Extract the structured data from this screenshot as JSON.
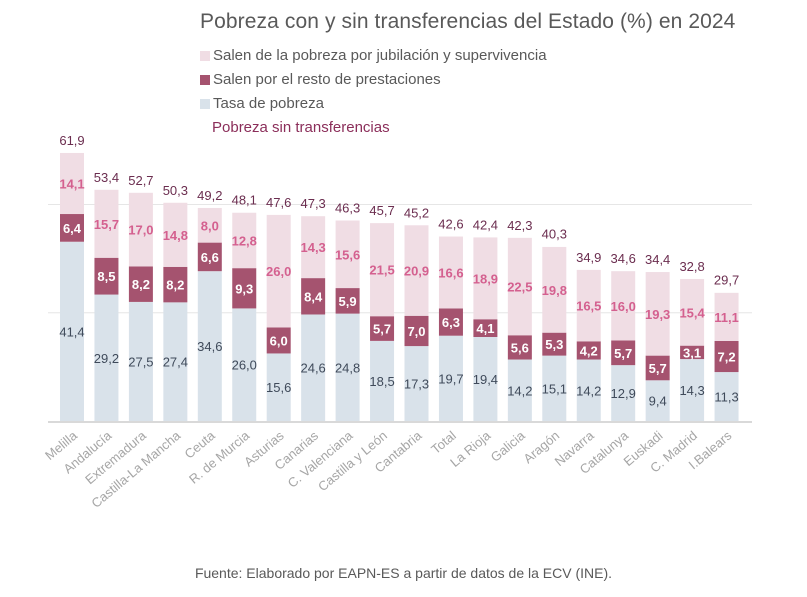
{
  "chart_data": {
    "type": "bar",
    "stacked": true,
    "title": "Pobreza con y sin transferencias del Estado (%) en 2024",
    "xlabel": "",
    "ylabel": "",
    "ylim": [
      0,
      65
    ],
    "gridlines": [
      25,
      50
    ],
    "grid": true,
    "legend_position": "top-left",
    "categories": [
      "Melilla",
      "Andalucía",
      "Extremadura",
      "Castilla-La Mancha",
      "Ceuta",
      "R. de Murcia",
      "Asturias",
      "Canarias",
      "C. Valenciana",
      "Castilla y León",
      "Cantabria",
      "Total",
      "La Rioja",
      "Galicia",
      "Aragón",
      "Navarra",
      "Catalunya",
      "Euskadi",
      "C. Madrid",
      "I.Balears"
    ],
    "series": [
      {
        "name": "Tasa de pobreza",
        "color": "#d9e2ea",
        "values": [
          41.4,
          29.2,
          27.5,
          27.4,
          34.6,
          26.0,
          15.6,
          24.6,
          24.8,
          18.5,
          17.3,
          19.7,
          19.4,
          14.2,
          15.1,
          14.2,
          12.9,
          9.4,
          14.3,
          11.3
        ],
        "labels": [
          "41,4",
          "29,2",
          "27,5",
          "27,4",
          "34,6",
          "26,0",
          "15,6",
          "24,6",
          "24,8",
          "18,5",
          "17,3",
          "19,7",
          "19,4",
          "14,2",
          "15,1",
          "14,2",
          "12,9",
          "9,4",
          "14,3",
          "11,3"
        ]
      },
      {
        "name": "Salen por el resto de prestaciones",
        "color": "#a5536f",
        "values": [
          6.4,
          8.5,
          8.2,
          8.2,
          6.6,
          9.3,
          6.0,
          8.4,
          5.9,
          5.7,
          7.0,
          6.3,
          4.1,
          5.6,
          5.3,
          4.2,
          5.7,
          5.7,
          3.1,
          7.2
        ],
        "labels": [
          "6,4",
          "8,5",
          "8,2",
          "8,2",
          "6,6",
          "9,3",
          "6,0",
          "8,4",
          "5,9",
          "5,7",
          "7,0",
          "6,3",
          "4,1",
          "5,6",
          "5,3",
          "4,2",
          "5,7",
          "5,7",
          "3,1",
          "7,2"
        ]
      },
      {
        "name": "Salen de la pobreza por jubilación y supervivencia",
        "color": "#f0dde4",
        "values": [
          14.1,
          15.7,
          17.0,
          14.8,
          8.0,
          12.8,
          26.0,
          14.3,
          15.6,
          21.5,
          20.9,
          16.6,
          18.9,
          22.5,
          19.8,
          16.5,
          16.0,
          19.3,
          15.4,
          11.1
        ],
        "labels": [
          "14,1",
          "15,7",
          "17,0",
          "14,8",
          "8,0",
          "12,8",
          "26,0",
          "14,3",
          "15,6",
          "21,5",
          "20,9",
          "16,6",
          "18,9",
          "22,5",
          "19,8",
          "16,5",
          "16,0",
          "19,3",
          "15,4",
          "11,1"
        ]
      },
      {
        "name": "Pobreza sin transferencias",
        "color": "#8b2e5a",
        "type": "label",
        "values": [
          61.9,
          53.4,
          52.7,
          50.3,
          49.2,
          48.1,
          47.6,
          47.3,
          46.3,
          45.7,
          45.2,
          42.6,
          42.4,
          42.3,
          40.3,
          34.9,
          34.6,
          34.4,
          32.8,
          29.7
        ],
        "labels": [
          "61,9",
          "53,4",
          "52,7",
          "50,3",
          "49,2",
          "48,1",
          "47,6",
          "47,3",
          "46,3",
          "45,7",
          "45,2",
          "42,6",
          "42,4",
          "42,3",
          "40,3",
          "34,9",
          "34,6",
          "34,4",
          "32,8",
          "29,7"
        ]
      }
    ]
  },
  "legend": {
    "items": [
      {
        "label": "Salen de la pobreza por jubilación y supervivencia",
        "color": "#f0dde4"
      },
      {
        "label": "Salen por el resto de prestaciones",
        "color": "#a5536f"
      },
      {
        "label": "Tasa de pobreza",
        "color": "#d9e2ea"
      }
    ],
    "total_label": "Pobreza sin transferencias"
  },
  "footer": "Fuente: Elaborado por EAPN-ES a partir de datos de la ECV (INE)."
}
